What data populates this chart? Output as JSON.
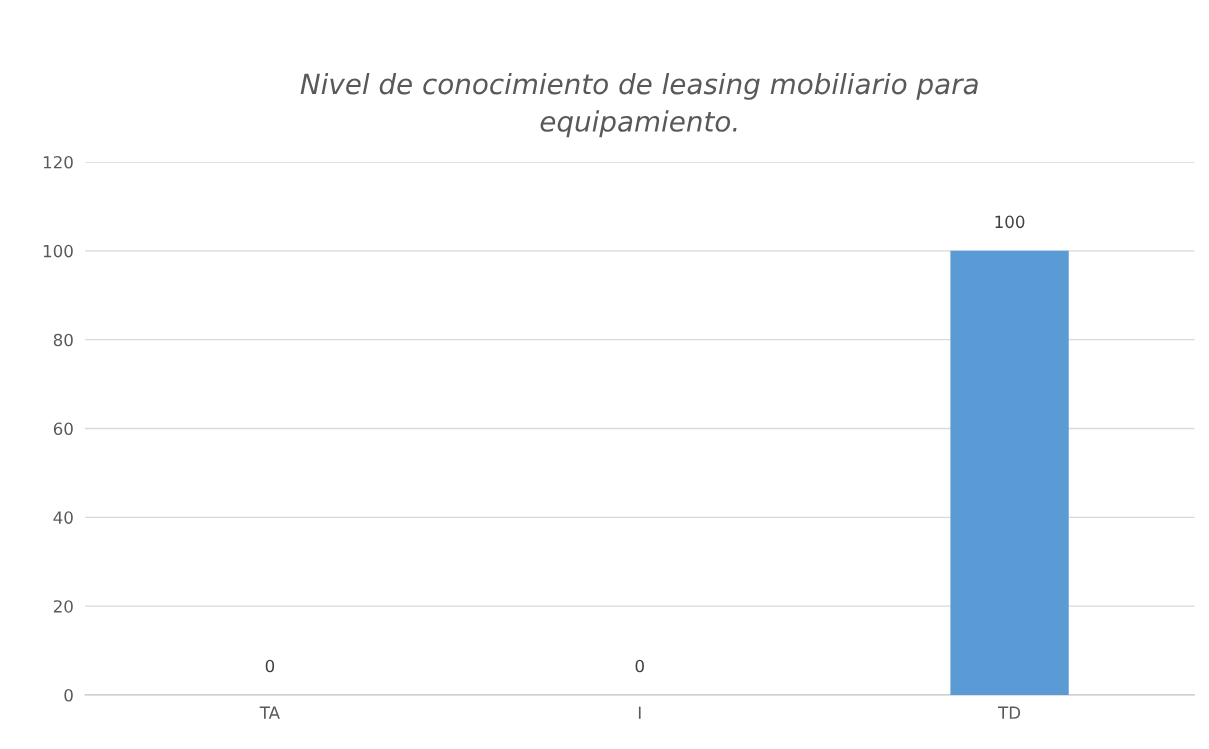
{
  "chart_data": {
    "type": "bar",
    "title": "Nivel de conocimiento de leasing mobiliario para\nequipamiento.",
    "categories": [
      "TA",
      "I",
      "TD"
    ],
    "values": [
      0,
      0,
      100
    ],
    "color": "#5b9bd5",
    "ylim": [
      0,
      120
    ],
    "yticks": [
      0,
      20,
      40,
      60,
      80,
      100,
      120
    ],
    "grid": "y",
    "data_labels": true
  }
}
